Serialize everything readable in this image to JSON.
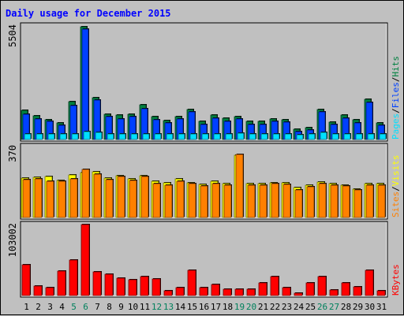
{
  "chart_data": {
    "type": "bar",
    "title": "Daily usage for December 2015",
    "days": [
      "1",
      "2",
      "3",
      "4",
      "5",
      "6",
      "7",
      "8",
      "9",
      "10",
      "11",
      "12",
      "13",
      "14",
      "15",
      "16",
      "17",
      "18",
      "19",
      "20",
      "21",
      "22",
      "23",
      "24",
      "25",
      "26",
      "27",
      "28",
      "29",
      "30",
      "31"
    ],
    "weekend_days": [
      "5",
      "6",
      "12",
      "13",
      "19",
      "20",
      "26",
      "27"
    ],
    "colors": {
      "hits": "#008040",
      "files": "#0040ff",
      "pages": "#00e0ff",
      "visits": "#ffff00",
      "sites": "#ff8000",
      "kbytes": "#ff0000",
      "weekday_label": "#000000",
      "weekend_label": "#00805c",
      "plot_bg": "#c0c0c0",
      "title": "#0000ff"
    },
    "panels": [
      {
        "name": "traffic",
        "ymax_label": "5504",
        "ymax": 5504,
        "legend": [
          {
            "text": "Pages",
            "color": "#00e0ff"
          },
          {
            "text": "/",
            "color": "#000000"
          },
          {
            "text": "Files",
            "color": "#0040ff"
          },
          {
            "text": "/",
            "color": "#000000"
          },
          {
            "text": "Hits",
            "color": "#008040"
          }
        ],
        "series": [
          {
            "name": "Hits",
            "color": "#008040",
            "values": [
              1400,
              1150,
              960,
              820,
              1820,
              5460,
              2020,
              1240,
              1180,
              1230,
              1680,
              1100,
              900,
              1100,
              1470,
              860,
              1180,
              1050,
              1110,
              870,
              870,
              1000,
              950,
              490,
              560,
              1470,
              830,
              1200,
              940,
              1950,
              820
            ]
          },
          {
            "name": "Files",
            "color": "#0040ff",
            "values": [
              1240,
              1010,
              860,
              690,
              1650,
              5370,
              1900,
              1110,
              1000,
              1110,
              1500,
              960,
              790,
              990,
              1350,
              740,
              1040,
              880,
              980,
              740,
              740,
              860,
              830,
              380,
              460,
              1340,
              720,
              1030,
              800,
              1780,
              690
            ]
          },
          {
            "name": "Pages",
            "color": "#00e0ff",
            "values": [
              250,
              260,
              260,
              260,
              260,
              400,
              330,
              260,
              260,
              270,
              270,
              260,
              260,
              260,
              270,
              260,
              260,
              270,
              300,
              270,
              270,
              260,
              260,
              240,
              250,
              350,
              260,
              260,
              270,
              270,
              260
            ]
          }
        ]
      },
      {
        "name": "visitors",
        "ymax_label": "370",
        "ymax": 370,
        "legend": [
          {
            "text": "Sites",
            "color": "#ff8000"
          },
          {
            "text": "/",
            "color": "#000000"
          },
          {
            "text": "Visits",
            "color": "#ffff00"
          }
        ],
        "series": [
          {
            "name": "Visits",
            "color": "#ffff00",
            "values": [
              205,
              210,
              215,
              195,
              222,
              235,
              240,
              205,
              218,
              200,
              218,
              190,
              180,
              200,
              182,
              172,
              188,
              178,
              325,
              178,
              178,
              182,
              180,
              155,
              170,
              185,
              175,
              170,
              150,
              176,
              176
            ]
          },
          {
            "name": "Sites",
            "color": "#ff8000",
            "values": [
              198,
              203,
              190,
              190,
              202,
              250,
              228,
              198,
              212,
              192,
              212,
              175,
              170,
              190,
              176,
              164,
              175,
              170,
              330,
              170,
              170,
              176,
              174,
              145,
              162,
              178,
              168,
              165,
              142,
              170,
              170
            ]
          }
        ]
      },
      {
        "name": "kbytes",
        "ymax_label": "103002",
        "ymax": 103002,
        "legend": [
          {
            "text": "KBytes",
            "color": "#ff0000"
          }
        ],
        "series": [
          {
            "name": "KBytes",
            "color": "#ff0000",
            "values": [
              45000,
              14000,
              11000,
              36000,
              51000,
              103000,
              34000,
              31000,
              25000,
              23000,
              28000,
              24000,
              7000,
              12000,
              37000,
              11000,
              16000,
              9000,
              9000,
              9000,
              18000,
              27000,
              11000,
              4000,
              18000,
              28000,
              8500,
              18000,
              13000,
              37000,
              7000
            ]
          }
        ]
      }
    ]
  }
}
